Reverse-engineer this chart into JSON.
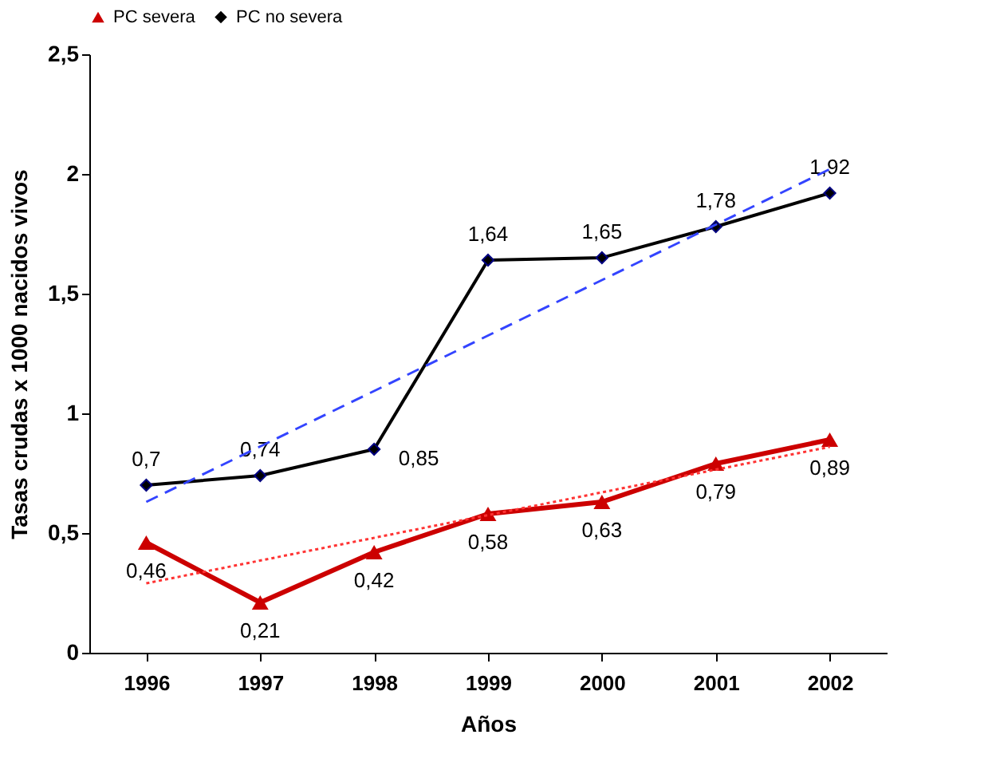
{
  "chart_data": {
    "type": "line",
    "xlabel": "Años",
    "ylabel": "Tasas crudas x 1000 nacidos vivos",
    "categories": [
      "1996",
      "1997",
      "1998",
      "1999",
      "2000",
      "2001",
      "2002"
    ],
    "series": [
      {
        "name": "PC severa",
        "color": "#cc0000",
        "marker": "triangle",
        "values": [
          0.46,
          0.21,
          0.42,
          0.58,
          0.63,
          0.79,
          0.89
        ],
        "value_labels": [
          "0,46",
          "0,21",
          "0,42",
          "0,58",
          "0,63",
          "0,79",
          "0,89"
        ]
      },
      {
        "name": "PC no severa",
        "color": "#000000",
        "marker": "diamond",
        "values": [
          0.7,
          0.74,
          0.85,
          1.64,
          1.65,
          1.78,
          1.92
        ],
        "value_labels": [
          "0,7",
          "0,74",
          "0,85",
          "1,64",
          "1,65",
          "1,78",
          "1,92"
        ]
      },
      {
        "type": "line",
        "color": "#ff3333",
        "line_style": "dotted",
        "marker": "none",
        "values": [
          0.29,
          null,
          null,
          null,
          null,
          null,
          0.86
        ]
      },
      {
        "type": "line",
        "color": "#3344ff",
        "line_style": "dashed",
        "marker": "none",
        "values": [
          0.63,
          null,
          null,
          null,
          null,
          null,
          2.02
        ]
      }
    ],
    "ylim": [
      0,
      2.5
    ],
    "yticks": [
      0,
      {
        "value": 0.5,
        "label": "0,5"
      },
      1,
      {
        "value": 1.5,
        "label": "1,5"
      },
      2,
      {
        "value": 2.5,
        "label": "2,5"
      }
    ],
    "grid": false,
    "legend": "top"
  }
}
